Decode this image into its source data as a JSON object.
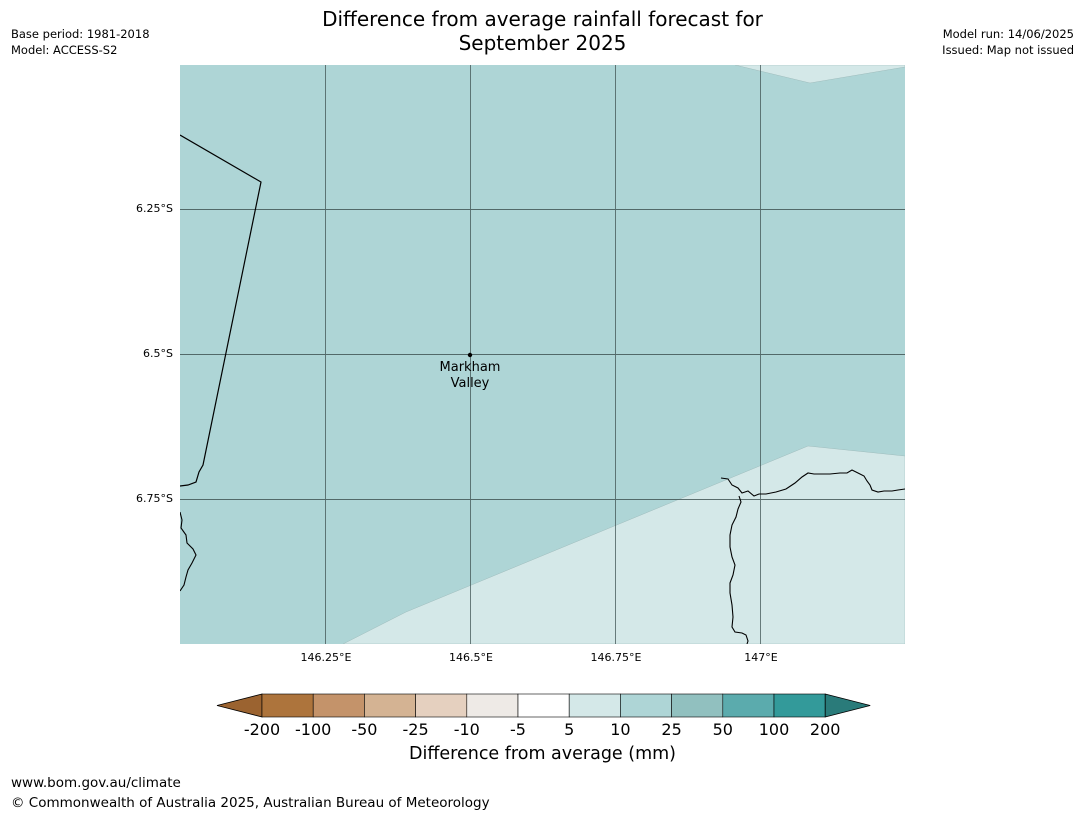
{
  "header": {
    "base_period": "Base period: 1981-2018",
    "model": "Model: ACCESS-S2",
    "model_run": "Model run: 14/06/2025",
    "issued": "Issued: Map not issued",
    "title_line1": "Difference from average rainfall forecast for",
    "title_line2": "September 2025"
  },
  "map": {
    "lat_labels": [
      "6.25°S",
      "6.5°S",
      "6.75°S"
    ],
    "lon_labels": [
      "146.25°E",
      "146.5°E",
      "146.75°E",
      "147°E"
    ],
    "place": {
      "name_line1": "Markham",
      "name_line2": "Valley"
    },
    "colors": {
      "light_blue": "#d4e8e8",
      "mid_blue": "#aed5d6"
    }
  },
  "colorbar": {
    "ticks": [
      "-200",
      "-100",
      "-50",
      "-25",
      "-10",
      "-5",
      "5",
      "10",
      "25",
      "50",
      "100",
      "200"
    ],
    "colors": [
      "#9b6330",
      "#ad743c",
      "#c4936a",
      "#d4b393",
      "#e5d0bf",
      "#eeeae6",
      "#ffffff",
      "#d4e8e8",
      "#aed5d6",
      "#91c0bf",
      "#5babad",
      "#339a9a",
      "#2a7b7a"
    ],
    "label": "Difference from average (mm)"
  },
  "footer": {
    "url": "www.bom.gov.au/climate",
    "copyright": "© Commonwealth of Australia 2025, Australian Bureau of Meteorology"
  }
}
